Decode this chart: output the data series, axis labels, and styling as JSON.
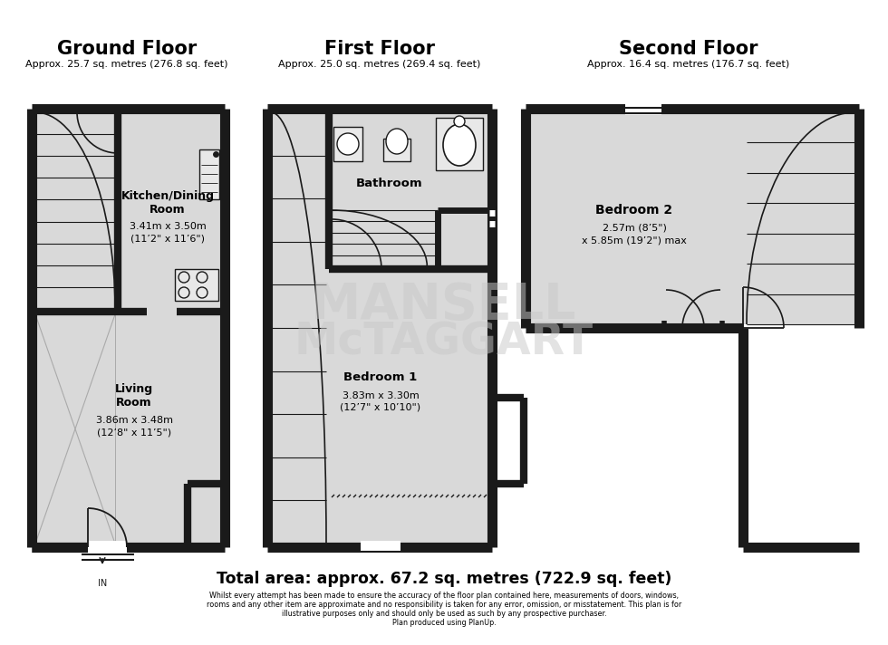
{
  "bg_color": "#ffffff",
  "floor_bg": "#d9d9d9",
  "wall_color": "#1a1a1a",
  "title_gf": "Ground Floor",
  "subtitle_gf": "Approx. 25.7 sq. metres (276.8 sq. feet)",
  "title_ff": "First Floor",
  "subtitle_ff": "Approx. 25.0 sq. metres (269.4 sq. feet)",
  "title_sf": "Second Floor",
  "subtitle_sf": "Approx. 16.4 sq. metres (176.7 sq. feet)",
  "total_area": "Total area: approx. 67.2 sq. metres (722.9 sq. feet)",
  "disclaimer_line1": "Whilst every attempt has been made to ensure the accuracy of the floor plan contained here, measurements of doors, windows,",
  "disclaimer_line2": "rooms and any other item are approximate and no responsibility is taken for any error, omission, or misstatement. This plan is for",
  "disclaimer_line3": "illustrative purposes only and should only be used as such by any prospective purchaser.",
  "disclaimer_line4": "Plan produced using PlanUp.",
  "watermark_line1": "MANSELL",
  "watermark_line2": "McTAGGART",
  "room_gf1_name": "Kitchen/Dining\nRoom",
  "room_gf1_dim1": "3.41m x 3.50m",
  "room_gf1_dim2": "(11’2\" x 11’6\")",
  "room_gf2_name": "Living\nRoom",
  "room_gf2_dim1": "3.86m x 3.48m",
  "room_gf2_dim2": "(12’8\" x 11’5\")",
  "room_ff1_name": "Bathroom",
  "room_ff2_name": "Bedroom 1",
  "room_ff2_dim1": "3.83m x 3.30m",
  "room_ff2_dim2": "(12’7\" x 10’10\")",
  "room_sf1_name": "Bedroom 2",
  "room_sf1_dim1": "2.57m (8’5\")",
  "room_sf1_dim2": "x 5.85m (19’2\") max"
}
